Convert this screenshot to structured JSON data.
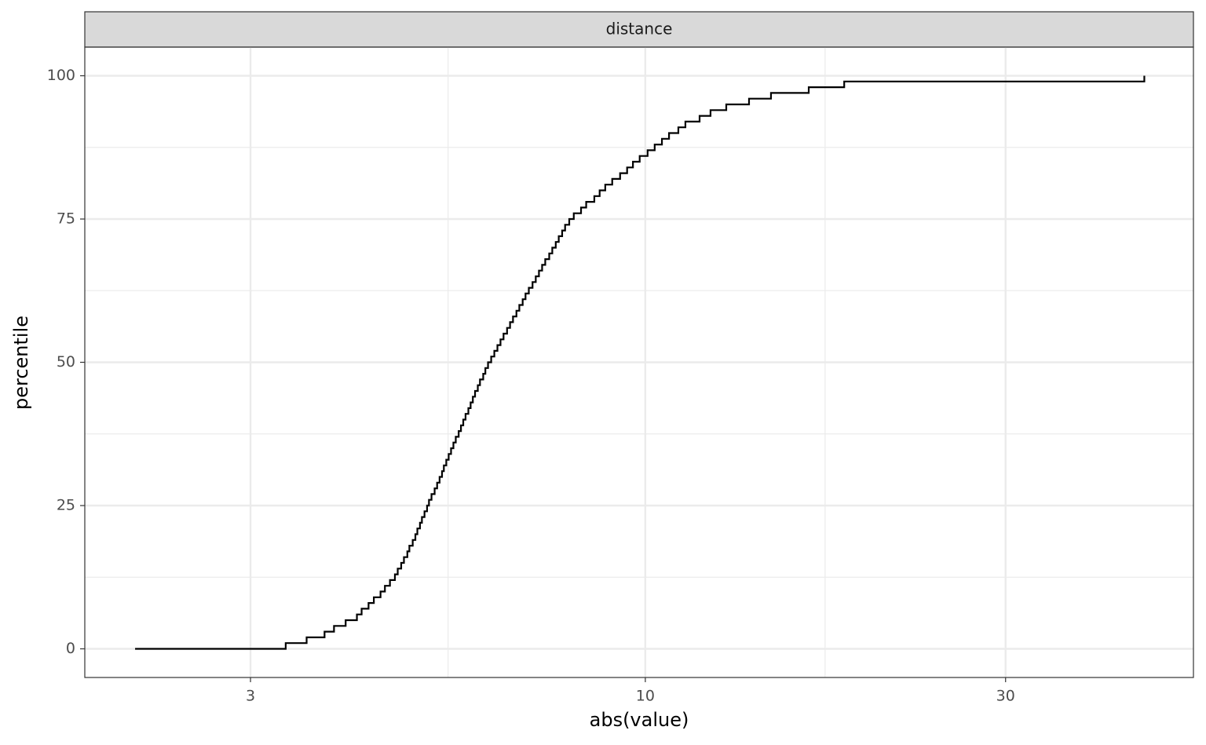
{
  "chart_data": {
    "type": "step",
    "strip_label": "distance",
    "x_label": "abs(value)",
    "y_label": "percentile",
    "x_log": true,
    "grid": true,
    "color": "#000000",
    "xlim": [
      1.81,
      53.2
    ],
    "xticks": [
      3,
      10,
      30
    ],
    "xminor_ticks": [
      5.48,
      17.3
    ],
    "ylim": [
      -5,
      105
    ],
    "yticks": [
      0,
      25,
      50,
      75,
      100
    ],
    "yminor_ticks": [
      12.5,
      37.5,
      62.5,
      87.5
    ],
    "x": [
      2.11,
      3.34,
      3.56,
      3.76,
      3.87,
      4.01,
      4.15,
      4.21,
      4.3,
      4.37,
      4.46,
      4.52,
      4.59,
      4.66,
      4.7,
      4.75,
      4.79,
      4.84,
      4.87,
      4.92,
      4.96,
      4.99,
      5.03,
      5.06,
      5.1,
      5.14,
      5.17,
      5.21,
      5.26,
      5.3,
      5.34,
      5.38,
      5.41,
      5.45,
      5.49,
      5.53,
      5.57,
      5.61,
      5.66,
      5.7,
      5.74,
      5.78,
      5.83,
      5.87,
      5.91,
      5.95,
      6.0,
      6.04,
      6.1,
      6.14,
      6.19,
      6.25,
      6.31,
      6.37,
      6.43,
      6.49,
      6.56,
      6.62,
      6.68,
      6.75,
      6.81,
      6.88,
      6.94,
      7.01,
      7.09,
      7.16,
      7.23,
      7.3,
      7.37,
      7.46,
      7.53,
      7.61,
      7.68,
      7.76,
      7.83,
      7.93,
      8.04,
      8.22,
      8.35,
      8.56,
      8.7,
      8.85,
      9.04,
      9.26,
      9.46,
      9.63,
      9.83,
      10.07,
      10.29,
      10.52,
      10.75,
      11.06,
      11.3,
      11.8,
      12.2,
      12.8,
      13.72,
      14.67,
      16.46,
      18.34,
      45.8
    ],
    "values": [
      0,
      1,
      2,
      3,
      4,
      5,
      6,
      7,
      8,
      9,
      10,
      11,
      12,
      13,
      14,
      15,
      16,
      17,
      18,
      19,
      20,
      21,
      22,
      23,
      24,
      25,
      26,
      27,
      28,
      29,
      30,
      31,
      32,
      33,
      34,
      35,
      36,
      37,
      38,
      39,
      40,
      41,
      42,
      43,
      44,
      45,
      46,
      47,
      48,
      49,
      50,
      51,
      52,
      53,
      54,
      55,
      56,
      57,
      58,
      59,
      60,
      61,
      62,
      63,
      64,
      65,
      66,
      67,
      68,
      69,
      70,
      71,
      72,
      73,
      74,
      75,
      76,
      77,
      78,
      79,
      80,
      81,
      82,
      83,
      84,
      85,
      86,
      87,
      88,
      89,
      90,
      91,
      92,
      93,
      94,
      95,
      96,
      97,
      98,
      99,
      100
    ]
  }
}
